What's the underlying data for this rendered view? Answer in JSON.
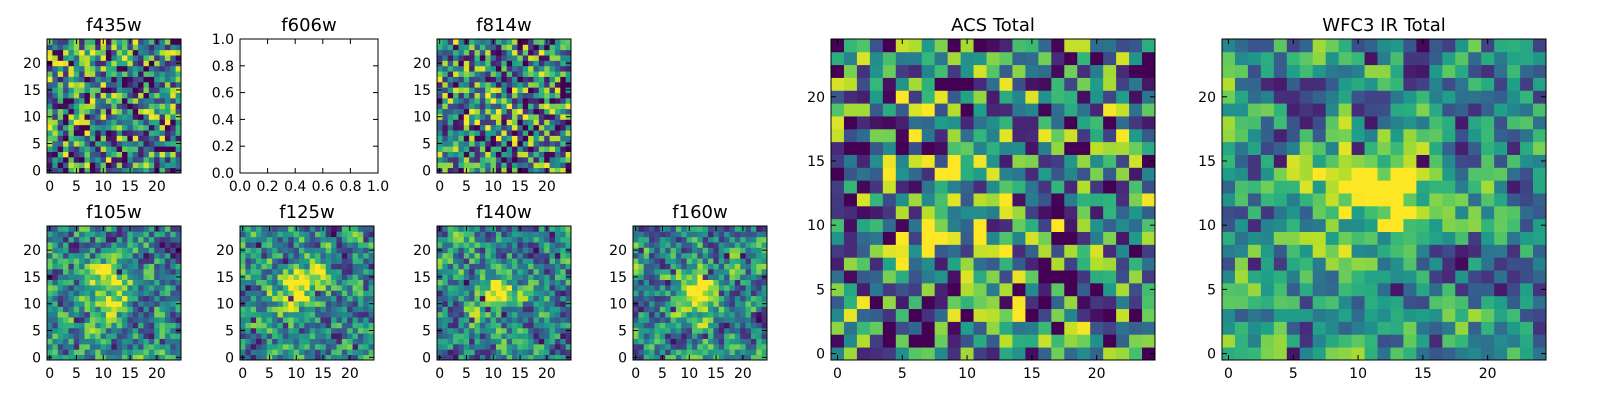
{
  "figure": {
    "background": "#ffffff"
  },
  "colormap": {
    "name": "viridis",
    "stops": [
      "#440154",
      "#482878",
      "#3e4989",
      "#31688e",
      "#26828e",
      "#1f9e89",
      "#35b779",
      "#6ece58",
      "#b5de2b",
      "#fde725"
    ]
  },
  "chart_data": [
    {
      "type": "heatmap",
      "title": "f435w",
      "xlabel": "",
      "ylabel": "",
      "grid_size": [
        25,
        25
      ],
      "xlim": [
        -0.5,
        24.5
      ],
      "ylim": [
        -0.5,
        24.5
      ],
      "xticks": [
        0,
        5,
        10,
        15,
        20
      ],
      "yticks": [
        0,
        5,
        10,
        15,
        20
      ],
      "pattern": "noise",
      "peak": [
        12,
        12
      ],
      "peak_strength": 0.0,
      "grid": false
    },
    {
      "type": "empty",
      "title": "f606w",
      "xlabel": "",
      "ylabel": "",
      "xlim": [
        0,
        1
      ],
      "ylim": [
        0,
        1
      ],
      "xticks": [
        0.0,
        0.2,
        0.4,
        0.6,
        0.8,
        1.0
      ],
      "yticks": [
        0.0,
        0.2,
        0.4,
        0.6,
        0.8,
        1.0
      ],
      "grid": false
    },
    {
      "type": "heatmap",
      "title": "f814w",
      "xlabel": "",
      "ylabel": "",
      "grid_size": [
        25,
        25
      ],
      "xlim": [
        -0.5,
        24.5
      ],
      "ylim": [
        -0.5,
        24.5
      ],
      "xticks": [
        0,
        5,
        10,
        15,
        20
      ],
      "yticks": [
        0,
        5,
        10,
        15,
        20
      ],
      "pattern": "noise",
      "peak": [
        10,
        12
      ],
      "peak_strength": 0.25,
      "grid": false
    },
    {
      "type": "heatmap",
      "title": "f105w",
      "xlabel": "",
      "ylabel": "",
      "grid_size": [
        25,
        25
      ],
      "xlim": [
        -0.5,
        24.5
      ],
      "ylim": [
        -0.5,
        24.5
      ],
      "xticks": [
        0,
        5,
        10,
        15,
        20
      ],
      "yticks": [
        0,
        5,
        10,
        15,
        20
      ],
      "pattern": "smooth",
      "peak": [
        11,
        13
      ],
      "peak_strength": 0.55,
      "grid": false
    },
    {
      "type": "heatmap",
      "title": "f125w",
      "xlabel": "",
      "ylabel": "",
      "grid_size": [
        25,
        25
      ],
      "xlim": [
        -0.5,
        24.5
      ],
      "ylim": [
        -0.5,
        24.5
      ],
      "xticks": [
        0,
        5,
        10,
        15,
        20
      ],
      "yticks": [
        0,
        5,
        10,
        15,
        20
      ],
      "pattern": "smooth",
      "peak": [
        10,
        13
      ],
      "peak_strength": 0.5,
      "grid": false
    },
    {
      "type": "heatmap",
      "title": "f140w",
      "xlabel": "",
      "ylabel": "",
      "grid_size": [
        25,
        25
      ],
      "xlim": [
        -0.5,
        24.5
      ],
      "ylim": [
        -0.5,
        24.5
      ],
      "xticks": [
        0,
        5,
        10,
        15,
        20
      ],
      "yticks": [
        0,
        5,
        10,
        15,
        20
      ],
      "pattern": "smooth",
      "peak": [
        11,
        13
      ],
      "peak_strength": 0.5,
      "grid": false
    },
    {
      "type": "heatmap",
      "title": "f160w",
      "xlabel": "",
      "ylabel": "",
      "grid_size": [
        25,
        25
      ],
      "xlim": [
        -0.5,
        24.5
      ],
      "ylim": [
        -0.5,
        24.5
      ],
      "xticks": [
        0,
        5,
        10,
        15,
        20
      ],
      "yticks": [
        0,
        5,
        10,
        15,
        20
      ],
      "pattern": "smooth",
      "peak": [
        12,
        12
      ],
      "peak_strength": 0.6,
      "grid": false
    },
    {
      "type": "heatmap",
      "title": "ACS Total",
      "xlabel": "",
      "ylabel": "",
      "grid_size": [
        25,
        25
      ],
      "xlim": [
        -0.5,
        24.5
      ],
      "ylim": [
        -0.5,
        24.5
      ],
      "xticks": [
        0,
        5,
        10,
        15,
        20
      ],
      "yticks": [
        0,
        5,
        10,
        15,
        20
      ],
      "pattern": "noise",
      "peak": [
        10,
        12
      ],
      "peak_strength": 0.35,
      "grid": false
    },
    {
      "type": "heatmap",
      "title": "WFC3 IR Total",
      "xlabel": "",
      "ylabel": "",
      "grid_size": [
        25,
        25
      ],
      "xlim": [
        -0.5,
        24.5
      ],
      "ylim": [
        -0.5,
        24.5
      ],
      "xticks": [
        0,
        5,
        10,
        15,
        20
      ],
      "yticks": [
        0,
        5,
        10,
        15,
        20
      ],
      "pattern": "smooth",
      "peak": [
        11,
        13
      ],
      "peak_strength": 0.75,
      "grid": false
    }
  ]
}
